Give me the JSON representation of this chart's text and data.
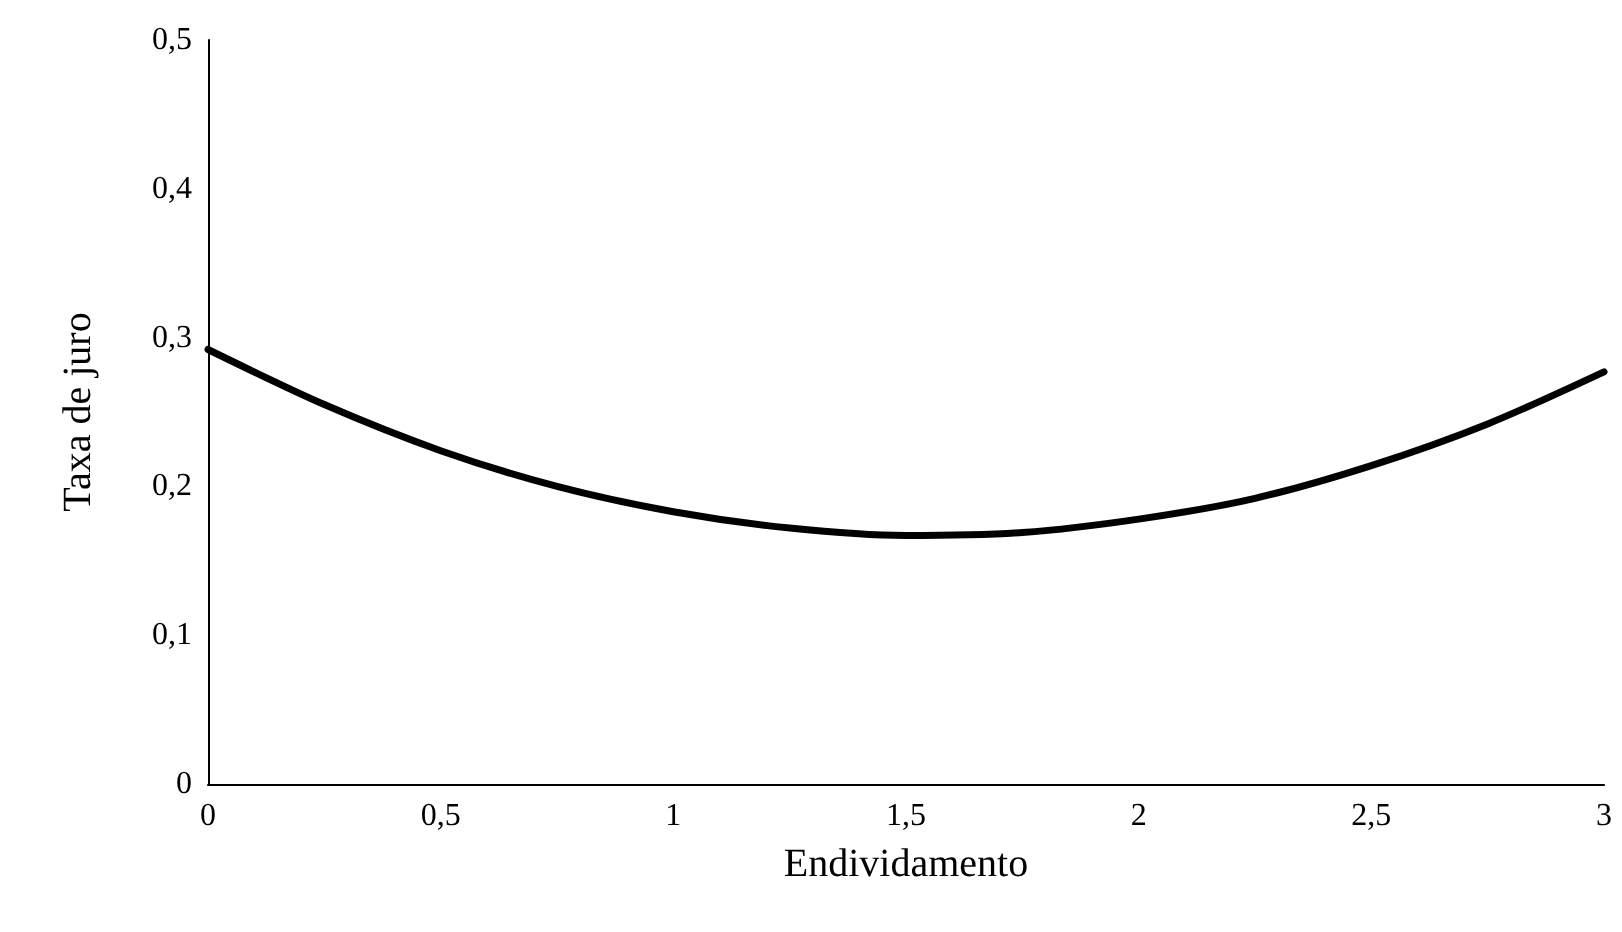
{
  "chart_data": {
    "type": "line",
    "xlabel": "Endividamento",
    "ylabel": "Taxa de juro",
    "x": [
      0,
      0.25,
      0.5,
      0.75,
      1,
      1.25,
      1.5,
      1.75,
      2,
      2.25,
      2.5,
      2.75,
      3
    ],
    "series": [
      {
        "color": "#000000",
        "values": [
          0.292,
          0.255,
          0.224,
          0.2,
          0.183,
          0.172,
          0.167,
          0.169,
          0.178,
          0.192,
          0.214,
          0.242,
          0.277
        ]
      }
    ],
    "xlim": [
      0,
      3
    ],
    "xticks": [
      0,
      {
        "value": 0.5,
        "label": "0,5"
      },
      1,
      {
        "value": 1.5,
        "label": "1,5"
      },
      2,
      {
        "value": 2.5,
        "label": "2,5"
      },
      3
    ],
    "ylim": [
      0,
      0.5
    ],
    "yticks": [
      0,
      {
        "value": 0.1,
        "label": "0,1"
      },
      {
        "value": 0.2,
        "label": "0,2"
      },
      {
        "value": 0.3,
        "label": "0,3"
      },
      {
        "value": 0.4,
        "label": "0,4"
      },
      {
        "value": 0.5,
        "label": "0,5"
      }
    ],
    "grid": false,
    "marker": "none",
    "line_style": "solid"
  }
}
